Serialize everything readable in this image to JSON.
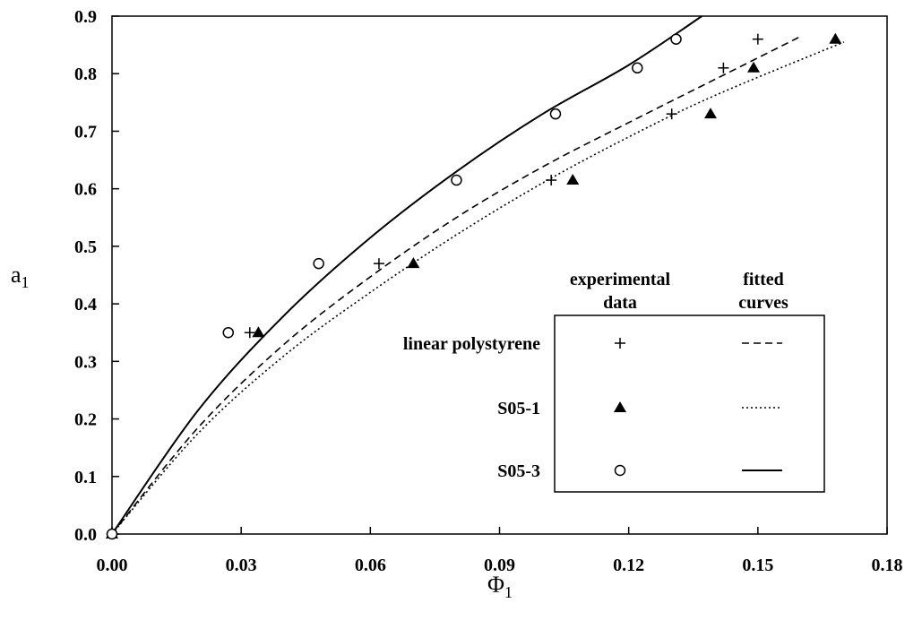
{
  "chart_data": {
    "type": "scatter",
    "xlabel": "Φ",
    "xlabel_sub": "1",
    "ylabel": "a",
    "ylabel_sub": "1",
    "xlim": [
      0,
      0.18
    ],
    "ylim": [
      0,
      0.9
    ],
    "x_ticks": [
      "0.00",
      "0.03",
      "0.06",
      "0.09",
      "0.12",
      "0.15",
      "0.18"
    ],
    "x_tick_values": [
      0,
      0.03,
      0.06,
      0.09,
      0.12,
      0.15,
      0.18
    ],
    "y_ticks": [
      "0.0",
      "0.1",
      "0.2",
      "0.3",
      "0.4",
      "0.5",
      "0.6",
      "0.7",
      "0.8",
      "0.9"
    ],
    "y_tick_values": [
      0,
      0.1,
      0.2,
      0.3,
      0.4,
      0.5,
      0.6,
      0.7,
      0.8,
      0.9
    ],
    "grid": false,
    "legend": {
      "placement": "lower-right",
      "header_experimental_line1": "experimental",
      "header_experimental_line2": "data",
      "header_fitted_line1": "fitted",
      "header_fitted_line2": "curves"
    },
    "series": [
      {
        "name": "linear polystyrene",
        "marker": "plus",
        "line_style": "dashed",
        "points": [
          [
            0,
            0
          ],
          [
            0.032,
            0.35
          ],
          [
            0.062,
            0.47
          ],
          [
            0.102,
            0.615
          ],
          [
            0.13,
            0.73
          ],
          [
            0.142,
            0.81
          ],
          [
            0.15,
            0.86
          ]
        ],
        "curve": [
          [
            0,
            0
          ],
          [
            0.02,
            0.185
          ],
          [
            0.04,
            0.33
          ],
          [
            0.06,
            0.447
          ],
          [
            0.08,
            0.55
          ],
          [
            0.1,
            0.638
          ],
          [
            0.12,
            0.715
          ],
          [
            0.14,
            0.79
          ],
          [
            0.16,
            0.865
          ]
        ]
      },
      {
        "name": "S05-1",
        "marker": "triangle",
        "line_style": "dotted",
        "points": [
          [
            0,
            0
          ],
          [
            0.034,
            0.35
          ],
          [
            0.07,
            0.47
          ],
          [
            0.107,
            0.615
          ],
          [
            0.139,
            0.73
          ],
          [
            0.149,
            0.81
          ],
          [
            0.168,
            0.86
          ]
        ],
        "curve": [
          [
            0,
            0
          ],
          [
            0.02,
            0.175
          ],
          [
            0.04,
            0.31
          ],
          [
            0.06,
            0.42
          ],
          [
            0.08,
            0.52
          ],
          [
            0.1,
            0.61
          ],
          [
            0.12,
            0.69
          ],
          [
            0.14,
            0.762
          ],
          [
            0.17,
            0.855
          ]
        ]
      },
      {
        "name": "S05-3",
        "marker": "circle",
        "line_style": "solid",
        "points": [
          [
            0,
            0
          ],
          [
            0.027,
            0.35
          ],
          [
            0.048,
            0.47
          ],
          [
            0.08,
            0.615
          ],
          [
            0.103,
            0.73
          ],
          [
            0.122,
            0.81
          ],
          [
            0.131,
            0.86
          ]
        ],
        "curve": [
          [
            0,
            0
          ],
          [
            0.02,
            0.215
          ],
          [
            0.04,
            0.38
          ],
          [
            0.06,
            0.515
          ],
          [
            0.08,
            0.63
          ],
          [
            0.1,
            0.73
          ],
          [
            0.12,
            0.815
          ],
          [
            0.137,
            0.9
          ]
        ]
      }
    ]
  }
}
